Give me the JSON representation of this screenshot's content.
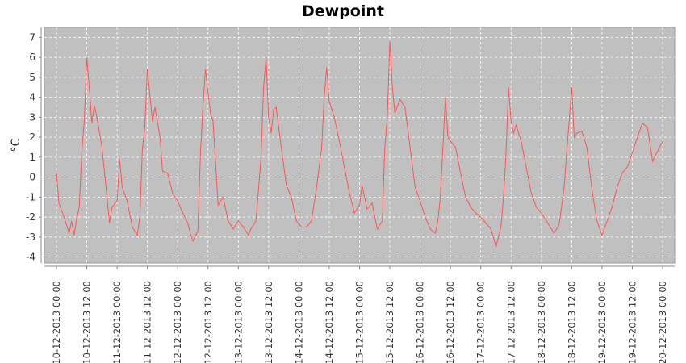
{
  "chart_data": {
    "type": "line",
    "title": "Dewpoint",
    "ylabel": "°C",
    "xlabel": "",
    "ylim": [
      -4.3,
      7.5
    ],
    "yticks": [
      -4,
      -3,
      -2,
      -1,
      0,
      1,
      2,
      3,
      4,
      5,
      6,
      7
    ],
    "xticks": [
      "10-12-2013 00:00",
      "10-12-2013 12:00",
      "11-12-2013 00:00",
      "11-12-2013 12:00",
      "12-12-2013 00:00",
      "12-12-2013 12:00",
      "13-12-2013 00:00",
      "13-12-2013 12:00",
      "14-12-2013 00:00",
      "14-12-2013 12:00",
      "15-12-2013 00:00",
      "15-12-2013 12:00",
      "16-12-2013 00:00",
      "16-12-2013 12:00",
      "17-12-2013 00:00",
      "17-12-2013 12:00",
      "18-12-2013 00:00",
      "18-12-2013 12:00",
      "19-12-2013 00:00",
      "19-12-2013 12:00",
      "20-12-2013 00:00"
    ],
    "grid": true,
    "legend": false,
    "series": [
      {
        "color": "#ff5555",
        "x": [
          "10-12-2013 00:00",
          "10-12-2013 01:00",
          "10-12-2013 03:00",
          "10-12-2013 05:00",
          "10-12-2013 06:00",
          "10-12-2013 07:00",
          "10-12-2013 08:00",
          "10-12-2013 09:00",
          "10-12-2013 10:00",
          "10-12-2013 11:00",
          "10-12-2013 12:00",
          "10-12-2013 13:00",
          "10-12-2013 14:00",
          "10-12-2013 15:00",
          "10-12-2013 16:00",
          "10-12-2013 18:00",
          "10-12-2013 20:00",
          "10-12-2013 21:00",
          "10-12-2013 22:00",
          "11-12-2013 00:00",
          "11-12-2013 01:00",
          "11-12-2013 02:00",
          "11-12-2013 04:00",
          "11-12-2013 06:00",
          "11-12-2013 08:00",
          "11-12-2013 09:00",
          "11-12-2013 10:00",
          "11-12-2013 11:00",
          "11-12-2013 12:00",
          "11-12-2013 14:00",
          "11-12-2013 15:00",
          "11-12-2013 17:00",
          "11-12-2013 18:00",
          "11-12-2013 20:00",
          "11-12-2013 22:00",
          "12-12-2013 00:00",
          "12-12-2013 02:00",
          "12-12-2013 04:00",
          "12-12-2013 05:00",
          "12-12-2013 06:00",
          "12-12-2013 08:00",
          "12-12-2013 09:00",
          "12-12-2013 10:00",
          "12-12-2013 11:00",
          "12-12-2013 12:00",
          "12-12-2013 13:00",
          "12-12-2013 14:00",
          "12-12-2013 16:00",
          "12-12-2013 18:00",
          "12-12-2013 20:00",
          "12-12-2013 22:00",
          "13-12-2013 00:00",
          "13-12-2013 02:00",
          "13-12-2013 04:00",
          "13-12-2013 05:00",
          "13-12-2013 07:00",
          "13-12-2013 09:00",
          "13-12-2013 10:00",
          "13-12-2013 11:00",
          "13-12-2013 12:00",
          "13-12-2013 13:00",
          "13-12-2013 14:00",
          "13-12-2013 15:00",
          "13-12-2013 17:00",
          "13-12-2013 19:00",
          "13-12-2013 21:00",
          "13-12-2013 23:00",
          "14-12-2013 01:00",
          "14-12-2013 03:00",
          "14-12-2013 05:00",
          "14-12-2013 07:00",
          "14-12-2013 09:00",
          "14-12-2013 10:00",
          "14-12-2013 11:00",
          "14-12-2013 12:00",
          "14-12-2013 14:00",
          "14-12-2013 16:00",
          "14-12-2013 18:00",
          "14-12-2013 20:00",
          "14-12-2013 22:00",
          "15-12-2013 00:00",
          "15-12-2013 01:00",
          "15-12-2013 03:00",
          "15-12-2013 05:00",
          "15-12-2013 07:00",
          "15-12-2013 09:00",
          "15-12-2013 10:00",
          "15-12-2013 11:00",
          "15-12-2013 12:00",
          "15-12-2013 13:00",
          "15-12-2013 14:00",
          "15-12-2013 16:00",
          "15-12-2013 18:00",
          "15-12-2013 20:00",
          "15-12-2013 22:00",
          "16-12-2013 00:00",
          "16-12-2013 02:00",
          "16-12-2013 04:00",
          "16-12-2013 06:00",
          "16-12-2013 07:00",
          "16-12-2013 08:00",
          "16-12-2013 09:00",
          "16-12-2013 10:00",
          "16-12-2013 11:00",
          "16-12-2013 12:00",
          "16-12-2013 14:00",
          "16-12-2013 16:00",
          "16-12-2013 18:00",
          "16-12-2013 20:00",
          "16-12-2013 22:00",
          "17-12-2013 00:00",
          "17-12-2013 02:00",
          "17-12-2013 04:00",
          "17-12-2013 05:00",
          "17-12-2013 06:00",
          "17-12-2013 08:00",
          "17-12-2013 09:00",
          "17-12-2013 10:00",
          "17-12-2013 11:00",
          "17-12-2013 12:00",
          "17-12-2013 13:00",
          "17-12-2013 14:00",
          "17-12-2013 16:00",
          "17-12-2013 18:00",
          "17-12-2013 20:00",
          "17-12-2013 22:00",
          "18-12-2013 00:00",
          "18-12-2013 02:00",
          "18-12-2013 04:00",
          "18-12-2013 05:00",
          "18-12-2013 07:00",
          "18-12-2013 08:00",
          "18-12-2013 09:00",
          "18-12-2013 10:00",
          "18-12-2013 11:00",
          "18-12-2013 12:00",
          "18-12-2013 13:00",
          "18-12-2013 14:00",
          "18-12-2013 16:00",
          "18-12-2013 18:00",
          "18-12-2013 20:00",
          "18-12-2013 22:00",
          "19-12-2013 00:00",
          "19-12-2013 02:00",
          "19-12-2013 04:00",
          "19-12-2013 06:00",
          "19-12-2013 08:00",
          "19-12-2013 10:00",
          "19-12-2013 12:00",
          "19-12-2013 14:00",
          "19-12-2013 16:00",
          "19-12-2013 18:00",
          "19-12-2013 20:00",
          "19-12-2013 22:00",
          "20-12-2013 00:00"
        ],
        "y": [
          0.2,
          -1.3,
          -2.0,
          -2.8,
          -2.2,
          -2.9,
          -2.1,
          -1.5,
          1.2,
          2.8,
          6.0,
          4.5,
          2.7,
          3.6,
          3.0,
          1.5,
          -1.0,
          -2.3,
          -1.5,
          -1.2,
          0.9,
          -0.5,
          -1.2,
          -2.5,
          -2.9,
          -2.0,
          1.4,
          2.5,
          5.4,
          2.8,
          3.5,
          2.0,
          0.3,
          0.2,
          -0.8,
          -1.2,
          -1.8,
          -2.3,
          -2.8,
          -3.2,
          -2.7,
          1.2,
          3.6,
          5.4,
          4.2,
          3.2,
          2.8,
          -1.4,
          -1.0,
          -2.2,
          -2.6,
          -2.2,
          -2.5,
          -2.9,
          -2.6,
          -2.2,
          1.0,
          4.5,
          6.0,
          3.0,
          2.2,
          3.4,
          3.5,
          1.5,
          -0.4,
          -1.0,
          -2.2,
          -2.5,
          -2.5,
          -2.2,
          -0.5,
          1.5,
          4.0,
          5.5,
          3.8,
          3.0,
          1.8,
          0.5,
          -0.8,
          -1.8,
          -1.4,
          -0.4,
          -1.6,
          -1.3,
          -2.6,
          -2.2,
          1.5,
          3.0,
          6.8,
          4.5,
          3.2,
          3.9,
          3.5,
          1.5,
          -0.5,
          -1.2,
          -2.0,
          -2.6,
          -2.8,
          -2.2,
          -1.0,
          1.5,
          4.0,
          2.0,
          1.8,
          1.5,
          0.2,
          -1.0,
          -1.5,
          -1.8,
          -2.0,
          -2.3,
          -2.6,
          -3.0,
          -3.5,
          -2.5,
          -1.0,
          1.2,
          4.5,
          2.8,
          2.2,
          2.6,
          1.8,
          0.5,
          -0.8,
          -1.5,
          -1.8,
          -2.2,
          -2.6,
          -2.8,
          -2.4,
          -1.5,
          -0.5,
          1.2,
          2.8,
          4.5,
          2.0,
          2.2,
          2.3,
          1.5,
          -0.6,
          -2.2,
          -2.9,
          -2.2,
          -1.5,
          -0.5,
          0.2,
          0.5,
          1.2,
          2.0,
          2.7,
          2.5,
          0.8,
          1.3,
          1.8
        ]
      }
    ]
  }
}
